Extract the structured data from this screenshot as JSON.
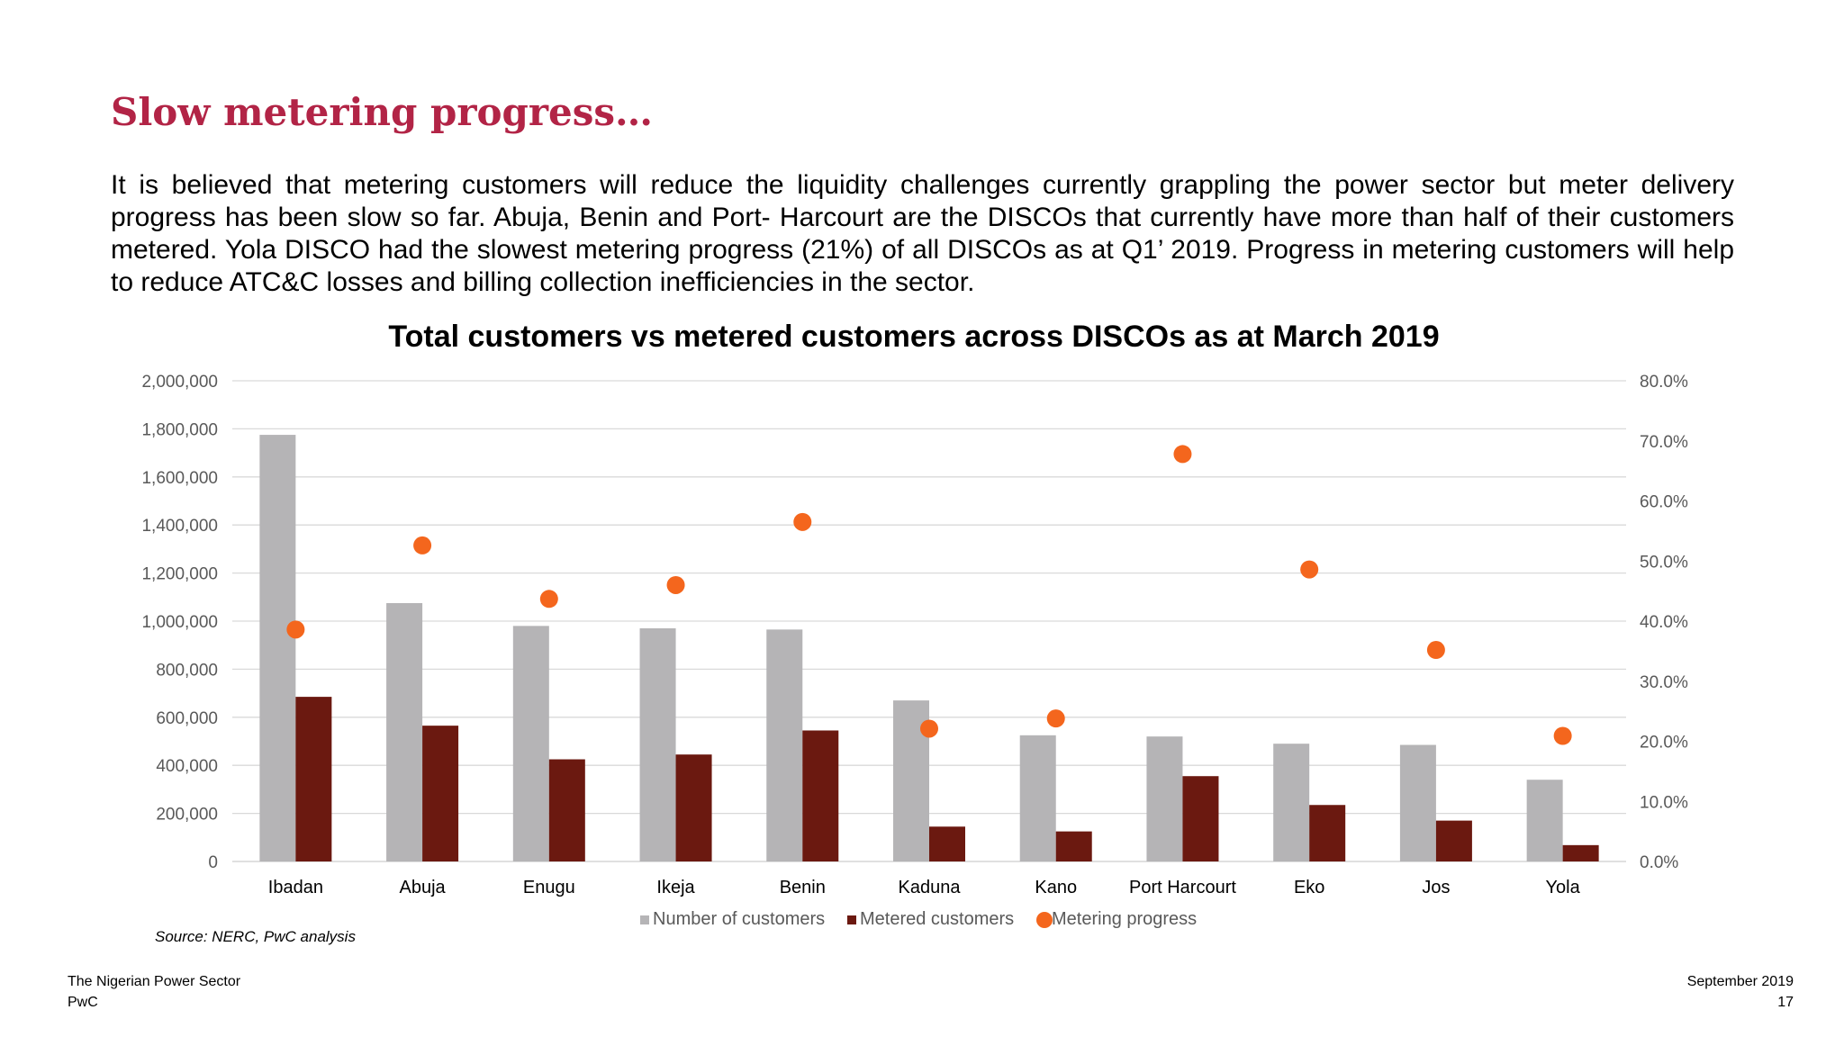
{
  "slide": {
    "title": "Slow metering progress…",
    "intro": "It is believed that metering customers will reduce the liquidity challenges currently grappling the power sector but meter delivery progress has been slow so far. Abuja, Benin and Port- Harcourt are the DISCOs that currently have more than half of their customers metered. Yola DISCO had the slowest metering progress (21%) of all DISCOs as at Q1’ 2019. Progress in metering customers will help to reduce ATC&C losses and billing collection inefficiencies in the sector.",
    "source": "Source: NERC, PwC analysis",
    "footer_left_1": "The Nigerian Power Sector",
    "footer_left_2": "PwC",
    "footer_right_1": "September 2019",
    "footer_right_2": "17"
  },
  "chart_data": {
    "type": "bar",
    "title": "Total customers vs metered customers across DISCOs as at March 2019",
    "categories": [
      "Ibadan",
      "Abuja",
      "Enugu",
      "Ikeja",
      "Benin",
      "Kaduna",
      "Kano",
      "Port Harcourt",
      "Eko",
      "Jos",
      "Yola"
    ],
    "series": [
      {
        "name": "Number of customers",
        "type": "bar",
        "axis": "left",
        "color": "#b5b4b6",
        "values": [
          1775000,
          1075000,
          980000,
          970000,
          965000,
          670000,
          525000,
          520000,
          490000,
          485000,
          340000
        ]
      },
      {
        "name": "Metered customers",
        "type": "bar",
        "axis": "left",
        "color": "#6b1910",
        "values": [
          685000,
          565000,
          425000,
          445000,
          545000,
          145000,
          125000,
          355000,
          235000,
          170000,
          68000
        ]
      },
      {
        "name": "Metering progress",
        "type": "scatter",
        "axis": "right",
        "color": "#f4661d",
        "values": [
          38.6,
          52.6,
          43.7,
          46.0,
          56.5,
          22.1,
          23.8,
          67.8,
          48.6,
          35.2,
          20.9
        ]
      }
    ],
    "ylim_left": [
      0,
      2000000
    ],
    "yticks_left": [
      "0",
      "200,000",
      "400,000",
      "600,000",
      "800,000",
      "1,000,000",
      "1,200,000",
      "1,400,000",
      "1,600,000",
      "1,800,000",
      "2,000,000"
    ],
    "ylim_right": [
      0,
      80
    ],
    "yticks_right": [
      "0.0%",
      "10.0%",
      "20.0%",
      "30.0%",
      "40.0%",
      "50.0%",
      "60.0%",
      "70.0%",
      "80.0%"
    ],
    "grid": true,
    "legend": "bottom",
    "gridline_color": "#d9d9d9"
  }
}
